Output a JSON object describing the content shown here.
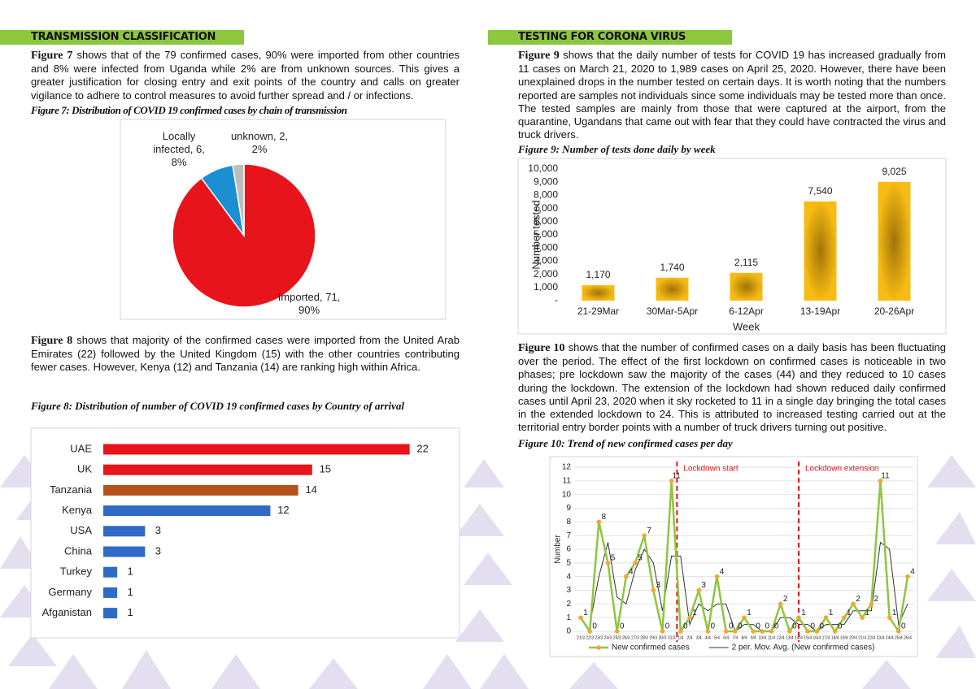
{
  "document": {
    "left": {
      "heading": "TRANSMISSION CLASSIFICATION",
      "p1_ref": "Figure 7",
      "p1": " shows that of the 79 confirmed cases, 90% were imported from other countries and 8% were infected from Uganda while 2% are from unknown sources. This gives a greater justification for closing entry and exit points of the country and calls on greater vigilance to adhere to control measures to avoid further spread and / or infections.",
      "caption1": "Figure 7: Distribution of COVID 19 confirmed cases by chain of transmission",
      "p2_ref": "Figure 8",
      "p2": " shows that majority of the confirmed cases were imported from the United Arab Emirates (22) followed by the United Kingdom (15) with the other countries contributing fewer cases. However, Kenya (12) and Tanzania (14) are ranking high within Africa.",
      "caption2": "Figure 8: Distribution of number of COVID 19 confirmed cases by Country of arrival"
    },
    "right": {
      "heading": "TESTING FOR CORONA VIRUS",
      "p1_ref": "Figure 9",
      "p1": " shows that the daily number of tests for COVID 19 has increased gradually from 11 cases on March 21, 2020 to 1,989 cases on April 25, 2020. However, there have been unexplained drops in the number tested on certain days. It is worth noting that the numbers reported are samples not individuals since some individuals may be tested more than once. The tested samples are mainly from those that were captured at the airport, from the quarantine, Ugandans that came out with fear that they could have contracted the virus and truck drivers.",
      "caption1": "Figure 9: Number of tests done daily by week",
      "p2_ref": "Figure 10",
      "p2": " shows that the number of confirmed cases on a daily basis has been fluctuating over the period. The effect of the first lockdown on confirmed cases is noticeable in two phases; pre lockdown saw the majority of the cases (44) and they reduced to 10 cases during the lockdown. The extension of the lockdown had shown reduced daily confirmed cases until April 23, 2020 when it sky rocketed to 11 in a single day bringing the total cases in the extended lockdown to 24. This is attributed to increased testing carried out at the territorial entry border points with a number of truck drivers turning out positive.",
      "caption2": "Figure 10: Trend of new confirmed cases per day"
    }
  },
  "chart_data": [
    {
      "type": "pie",
      "values": [
        71,
        6,
        2
      ],
      "labels": [
        "Imported, 71, 90%",
        "Locally infected, 6, 8%",
        "unknown, 2, 2%"
      ],
      "colors": [
        "#e8141b",
        "#1b8fd2",
        "#bdbdbd"
      ]
    },
    {
      "type": "hbar",
      "categories": [
        "UAE",
        "UK",
        "Tanzania",
        "Kenya",
        "USA",
        "China",
        "Turkey",
        "Germany",
        "Afganistan"
      ],
      "values": [
        22,
        15,
        14,
        12,
        3,
        3,
        1,
        1,
        1
      ],
      "colors": [
        "#e8141b",
        "#e8141b",
        "#b5521b",
        "#2f6bc4",
        "#2f6bc4",
        "#2f6bc4",
        "#2f6bc4",
        "#2f6bc4",
        "#2f6bc4"
      ],
      "xlim": [
        0,
        25
      ]
    },
    {
      "type": "bar",
      "categories": [
        "21-29Mar",
        "30Mar-5Apr",
        "6-12Apr",
        "13-19Apr",
        "20-26Apr"
      ],
      "values": [
        1170,
        1740,
        2115,
        7540,
        9025
      ],
      "value_labels": [
        "1,170",
        "1,740",
        "2,115",
        "7,540",
        "9,025"
      ],
      "color": "#f7bb13",
      "ylim": [
        0,
        10000
      ],
      "yticks": [
        {
          "value": 0,
          "label": "-"
        },
        {
          "value": 1000,
          "label": "1,000"
        },
        {
          "value": 2000,
          "label": "2,000"
        },
        {
          "value": 3000,
          "label": "3,000"
        },
        {
          "value": 4000,
          "label": "4,000"
        },
        {
          "value": 5000,
          "label": "5,000"
        },
        {
          "value": 6000,
          "label": "6,000"
        },
        {
          "value": 7000,
          "label": "7,000"
        },
        {
          "value": 8000,
          "label": "8,000"
        },
        {
          "value": 9000,
          "label": "9,000"
        },
        {
          "value": 10000,
          "label": "10,000"
        }
      ],
      "ylabel": "Number tested",
      "xlabel": "Week"
    },
    {
      "type": "line",
      "categories": [
        "21/3",
        "22/3",
        "23/3",
        "24/3",
        "25/3",
        "26/3",
        "27/3",
        "28/3",
        "29/3",
        "30/3",
        "31/3",
        "1/4",
        "2/4",
        "3/4",
        "4/4",
        "5/4",
        "6/4",
        "7/4",
        "8/4",
        "9/4",
        "10/4",
        "11/4",
        "12/4",
        "13/4",
        "14/4",
        "15/4",
        "16/4",
        "17/4",
        "18/4",
        "19/4",
        "20/4",
        "21/4",
        "22/4",
        "23/4",
        "24/4",
        "25/4",
        "26/4"
      ],
      "series": [
        {
          "name": "New confirmed cases",
          "color": "#8dc63f",
          "marker_color": "#f0a830",
          "values": [
            1,
            0,
            8,
            5,
            0,
            4,
            5,
            7,
            3,
            0,
            11,
            0,
            1,
            3,
            0,
            4,
            0,
            0,
            1,
            0,
            0,
            0,
            2,
            0,
            1,
            0,
            0,
            1,
            0,
            1,
            2,
            1,
            2,
            11,
            1,
            0,
            4
          ]
        },
        {
          "name": "2 per. Mov. Avg. (New confirmed cases)",
          "color": "#333333",
          "values": [
            null,
            0.5,
            4,
            6.5,
            2.5,
            2,
            4.5,
            6,
            5,
            1.5,
            5.5,
            5.5,
            0.5,
            2,
            1.5,
            2,
            2,
            0,
            0.5,
            0.5,
            0,
            0,
            1,
            1,
            0.5,
            0.5,
            0,
            0.5,
            0.5,
            0.5,
            1.5,
            1.5,
            1.5,
            6.5,
            6,
            0.5,
            2
          ]
        }
      ],
      "ylim": [
        0,
        12
      ],
      "yticks": [
        0,
        1,
        2,
        3,
        4,
        5,
        6,
        7,
        8,
        9,
        10,
        11,
        12
      ],
      "ylabel": "Number",
      "grid": true,
      "annotations": [
        {
          "text": "Lockdown start",
          "color": "#e8141b"
        },
        {
          "text": "Lockdown extension",
          "color": "#e8141b"
        }
      ],
      "legend": "bottom"
    }
  ]
}
